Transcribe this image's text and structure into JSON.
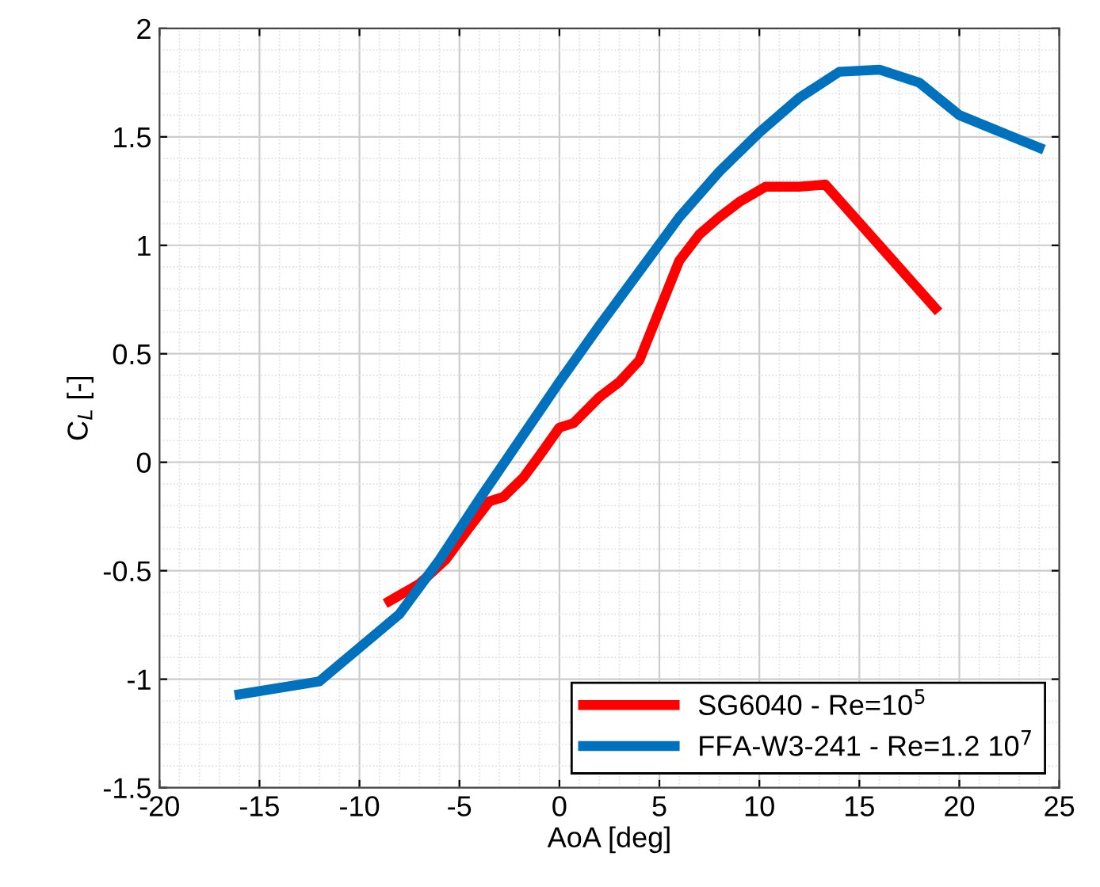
{
  "chart_data": {
    "type": "line",
    "xlabel": "AoA [deg]",
    "ylabel": "C$_{L}$ [-]",
    "xlim": [
      -20,
      25
    ],
    "xticks": [
      -20,
      -15,
      -10,
      -5,
      0,
      5,
      10,
      15,
      20,
      25
    ],
    "ylim": [
      -1.5,
      2
    ],
    "yticks": [
      -1.5,
      -1,
      -0.5,
      0,
      0.5,
      1,
      1.5,
      2
    ],
    "grid": true,
    "legend": "bottom right",
    "line_style": "solid",
    "marker": "none",
    "series": [
      {
        "name": "SG6040 - Re=10$^{5}$",
        "color": "#ff0000",
        "x": [
          -8.5,
          -7,
          -5.7,
          -4.5,
          -3.5,
          -2.8,
          -1.8,
          -1,
          0,
          0.7,
          2,
          3,
          4,
          5,
          6,
          7,
          8,
          9,
          10.3,
          12,
          13.3,
          16,
          18.8
        ],
        "values": [
          -0.64,
          -0.56,
          -0.45,
          -0.3,
          -0.18,
          -0.16,
          -0.07,
          0.03,
          0.16,
          0.18,
          0.3,
          0.37,
          0.47,
          0.7,
          0.93,
          1.05,
          1.13,
          1.2,
          1.27,
          1.27,
          1.28,
          1.0,
          0.71
        ]
      },
      {
        "name": "FFA-W3-241 - Re=1.2 10$^{7}$",
        "color": "#0072bd",
        "x": [
          -16,
          -12,
          -8,
          -6,
          -4,
          -2,
          0,
          2,
          4,
          6,
          8,
          10,
          12,
          14,
          16,
          18,
          20,
          24
        ],
        "values": [
          -1.07,
          -1.01,
          -0.7,
          -0.45,
          -0.17,
          0.1,
          0.37,
          0.63,
          0.88,
          1.13,
          1.34,
          1.52,
          1.68,
          1.8,
          1.81,
          1.75,
          1.6,
          1.45
        ]
      }
    ]
  }
}
